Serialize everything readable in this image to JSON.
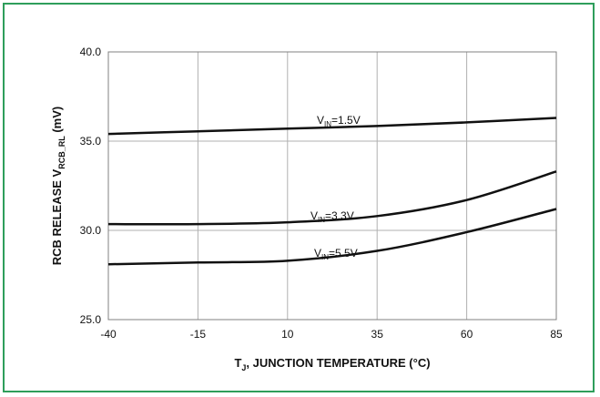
{
  "chart_data": {
    "type": "line",
    "xlabel": {
      "main": "T",
      "sub": "J",
      "rest": ", JUNCTION TEMPERATURE (°C)"
    },
    "ylabel": {
      "main": "RCB RELEASE V",
      "sub": "RCB_RL",
      "rest": " (mV)"
    },
    "x_ticks": [
      "-40",
      "-15",
      "10",
      "35",
      "60",
      "85"
    ],
    "y_ticks": [
      "25.0",
      "30.0",
      "35.0",
      "40.0"
    ],
    "xlim": [
      -40,
      85
    ],
    "ylim": [
      25.0,
      40.0
    ],
    "grid": true,
    "colors": {
      "frame": "#2e9e5b",
      "line": "#111111",
      "grid": "#b0b0b0"
    },
    "series": [
      {
        "label_main": "V",
        "label_sub": "IN",
        "label_rest": "=1.5V",
        "x": [
          -40,
          -15,
          10,
          35,
          60,
          85
        ],
        "y": [
          35.4,
          35.55,
          35.7,
          35.85,
          36.05,
          36.3
        ]
      },
      {
        "label_main": "V",
        "label_sub": "IN",
        "label_rest": "=3.3V",
        "x": [
          -40,
          -15,
          10,
          35,
          60,
          85
        ],
        "y": [
          30.35,
          30.35,
          30.45,
          30.8,
          31.7,
          33.3
        ]
      },
      {
        "label_main": "V",
        "label_sub": "IN",
        "label_rest": "=5.5V",
        "x": [
          -40,
          -15,
          10,
          35,
          60,
          85
        ],
        "y": [
          28.1,
          28.2,
          28.3,
          28.85,
          29.9,
          31.2
        ]
      }
    ]
  }
}
